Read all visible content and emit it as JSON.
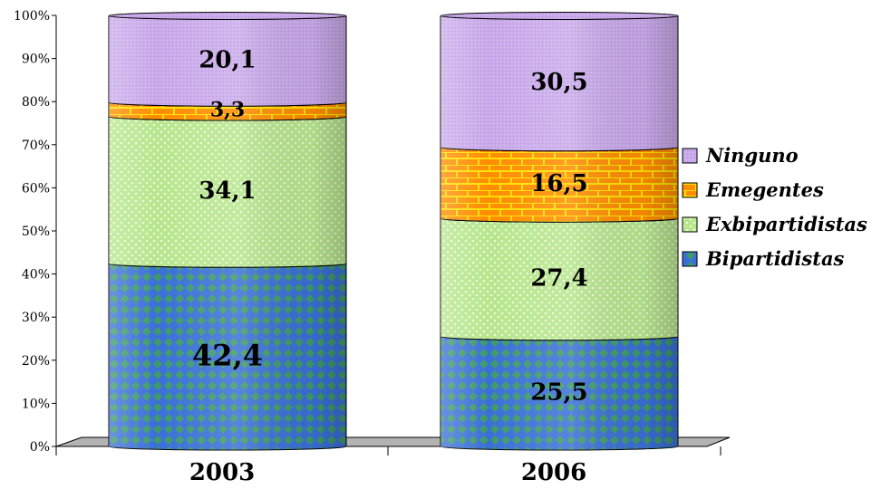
{
  "chart_data": {
    "type": "bar",
    "stacked": true,
    "percent": true,
    "style": "3d-cylinder",
    "title": "",
    "xlabel": "",
    "ylabel": "",
    "ylim": [
      0,
      100
    ],
    "yticks": [
      "0%",
      "10%",
      "20%",
      "30%",
      "40%",
      "50%",
      "60%",
      "70%",
      "80%",
      "90%",
      "100%"
    ],
    "categories": [
      "2003",
      "2006"
    ],
    "series": [
      {
        "name": "Bipartidistas",
        "values": [
          42.4,
          25.5
        ],
        "labels": [
          "42,4",
          "25,5"
        ],
        "color": "#3a6fd8",
        "pattern": "diamond"
      },
      {
        "name": "Exbipartidistas",
        "values": [
          34.1,
          27.4
        ],
        "labels": [
          "34,1",
          "27,4"
        ],
        "color": "#b4e08c",
        "pattern": "dots"
      },
      {
        "name": "Emegentes",
        "values": [
          3.3,
          16.5
        ],
        "labels": [
          "3,3",
          "16,5"
        ],
        "color": "#ff8c00",
        "pattern": "brick"
      },
      {
        "name": "Ninguno",
        "values": [
          20.1,
          30.5
        ],
        "labels": [
          "20,1",
          "30,5"
        ],
        "color": "#c8a8e8",
        "pattern": "fine"
      }
    ],
    "legend": {
      "position": "right",
      "order": [
        "Ninguno",
        "Emegentes",
        "Exbipartidistas",
        "Bipartidistas"
      ]
    },
    "grid": false
  }
}
